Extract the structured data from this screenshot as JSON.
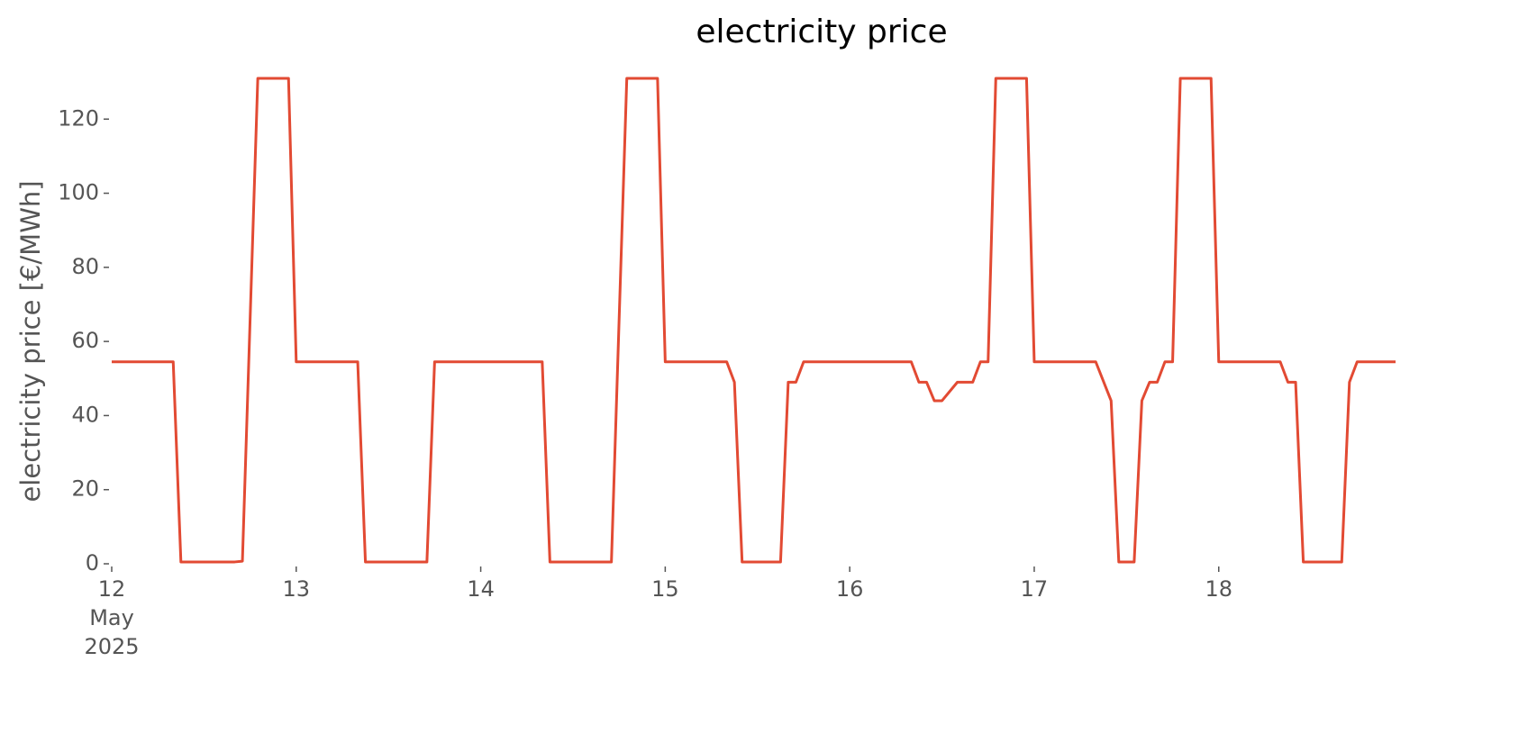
{
  "chart_data": {
    "type": "line",
    "title": "electricity price",
    "ylabel": "electricity price [€/MWh]",
    "color": "#e24a33",
    "x": [
      "2025-05-12T00:00",
      "2025-05-12T08:00",
      "2025-05-12T09:00",
      "2025-05-12T16:00",
      "2025-05-12T17:00",
      "2025-05-12T19:00",
      "2025-05-12T23:00",
      "2025-05-13T00:00",
      "2025-05-13T08:00",
      "2025-05-13T09:00",
      "2025-05-13T17:00",
      "2025-05-13T18:00",
      "2025-05-14T08:00",
      "2025-05-14T09:00",
      "2025-05-14T17:00",
      "2025-05-14T19:00",
      "2025-05-14T23:00",
      "2025-05-15T00:00",
      "2025-05-15T08:00",
      "2025-05-15T09:00",
      "2025-05-15T10:00",
      "2025-05-15T15:00",
      "2025-05-15T16:00",
      "2025-05-15T17:00",
      "2025-05-15T18:00",
      "2025-05-16T08:00",
      "2025-05-16T09:00",
      "2025-05-16T10:00",
      "2025-05-16T11:00",
      "2025-05-16T12:00",
      "2025-05-16T14:00",
      "2025-05-16T16:00",
      "2025-05-16T17:00",
      "2025-05-16T18:00",
      "2025-05-16T19:00",
      "2025-05-16T23:00",
      "2025-05-17T00:00",
      "2025-05-17T08:00",
      "2025-05-17T10:00",
      "2025-05-17T11:00",
      "2025-05-17T13:00",
      "2025-05-17T14:00",
      "2025-05-17T15:00",
      "2025-05-17T16:00",
      "2025-05-17T17:00",
      "2025-05-17T18:00",
      "2025-05-17T19:00",
      "2025-05-17T23:00",
      "2025-05-18T00:00",
      "2025-05-18T08:00",
      "2025-05-18T09:00",
      "2025-05-18T10:00",
      "2025-05-18T11:00",
      "2025-05-18T16:00",
      "2025-05-18T17:00",
      "2025-05-18T18:00",
      "2025-05-18T23:00"
    ],
    "values": [
      54.5,
      54.5,
      0.5,
      0.5,
      0.7,
      131,
      131,
      54.5,
      54.5,
      0.5,
      0.5,
      54.5,
      54.5,
      0.5,
      0.5,
      131,
      131,
      54.5,
      54.5,
      49,
      0.5,
      0.5,
      49,
      49,
      54.5,
      54.5,
      49,
      49,
      44,
      44,
      49,
      49,
      54.5,
      54.5,
      131,
      131,
      54.5,
      54.5,
      44,
      0.5,
      0.5,
      44,
      49,
      49,
      54.5,
      54.5,
      131,
      131,
      54.5,
      54.5,
      49,
      49,
      0.5,
      0.5,
      49,
      54.5,
      54.5
    ],
    "xlim": [
      "2025-05-12T00:00",
      "2025-05-18T23:00"
    ],
    "xticks": [
      {
        "value": "2025-05-12T00:00",
        "label": "12\nMay\n2025"
      },
      {
        "value": "2025-05-13T00:00",
        "label": "13"
      },
      {
        "value": "2025-05-14T00:00",
        "label": "14"
      },
      {
        "value": "2025-05-15T00:00",
        "label": "15"
      },
      {
        "value": "2025-05-16T00:00",
        "label": "16"
      },
      {
        "value": "2025-05-17T00:00",
        "label": "17"
      },
      {
        "value": "2025-05-18T00:00",
        "label": "18"
      }
    ],
    "ylim": [
      0,
      131
    ],
    "yticks": [
      0,
      20,
      40,
      60,
      80,
      100,
      120
    ],
    "grid": false
  }
}
